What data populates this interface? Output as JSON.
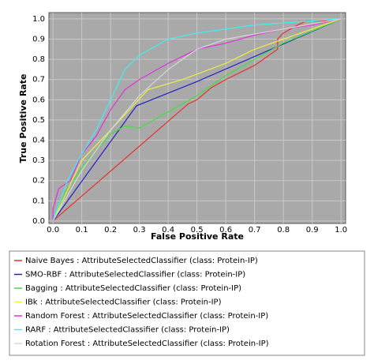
{
  "chart_data": {
    "type": "line",
    "x_label": "False Positive Rate",
    "y_label": "True Positive Rate",
    "xlim": [
      -0.014,
      1.016
    ],
    "ylim": [
      -0.012,
      1.031
    ],
    "xticks": [
      {
        "value": 0,
        "label": "0.0"
      },
      0.1,
      0.2,
      0.3,
      0.4,
      0.5,
      0.6,
      0.7,
      0.8,
      0.9,
      {
        "value": 1,
        "label": "1.0"
      }
    ],
    "yticks": [
      {
        "value": 0,
        "label": "0.0"
      },
      0.1,
      0.2,
      0.3,
      0.4,
      0.5,
      0.6,
      0.7,
      0.8,
      0.9,
      {
        "value": 1,
        "label": "1.0"
      }
    ],
    "grid": true,
    "series": [
      {
        "name": "Naive Bayes : AttributeSelectedClassifier (class: Protein-IP)",
        "color": "#e8302a",
        "x": [
          0,
          0.47,
          0.5,
          0.55,
          0.6,
          0.7,
          0.78,
          0.78,
          0.8,
          0.85,
          0.88,
          0.95,
          1
        ],
        "values": [
          0,
          0.58,
          0.6,
          0.66,
          0.7,
          0.77,
          0.85,
          0.9,
          0.93,
          0.97,
          0.99,
          0.99,
          1
        ]
      },
      {
        "name": "SMO-RBF : AttributeSelectedClassifier (class: Protein-IP)",
        "color": "#2020c0",
        "x": [
          0,
          0.29,
          0.5,
          1
        ],
        "values": [
          0,
          0.57,
          0.69,
          1
        ]
      },
      {
        "name": "Bagging : AttributeSelectedClassifier (class: Protein-IP)",
        "color": "#40e040",
        "x": [
          0,
          0.05,
          0.1,
          0.15,
          0.2,
          0.25,
          0.3,
          0.35,
          0.45,
          0.5,
          0.6,
          0.7,
          0.8,
          0.9,
          1
        ],
        "values": [
          0,
          0.16,
          0.26,
          0.35,
          0.43,
          0.47,
          0.46,
          0.5,
          0.58,
          0.62,
          0.72,
          0.8,
          0.88,
          0.94,
          1
        ]
      },
      {
        "name": "IBk : AttributeSelectedClassifier (class: Protein-IP)",
        "color": "#f0f040",
        "x": [
          0,
          0.1,
          0.2,
          0.33,
          0.45,
          0.6,
          0.7,
          0.8,
          0.9,
          1
        ],
        "values": [
          0,
          0.3,
          0.45,
          0.65,
          0.7,
          0.78,
          0.85,
          0.9,
          0.95,
          1
        ]
      },
      {
        "name": "Random Forest : AttributeSelectedClassifier (class: Protein-IP)",
        "color": "#e030e0",
        "x": [
          0,
          0,
          0.02,
          0.06,
          0.1,
          0.15,
          0.2,
          0.25,
          0.3,
          0.4,
          0.5,
          0.6,
          0.7,
          0.8,
          0.9,
          1
        ],
        "values": [
          0,
          0.06,
          0.16,
          0.2,
          0.33,
          0.42,
          0.55,
          0.65,
          0.7,
          0.78,
          0.85,
          0.88,
          0.92,
          0.95,
          0.97,
          1
        ]
      },
      {
        "name": "RARF : AttributeSelectedClassifier (class: Protein-IP)",
        "color": "#40f0f0",
        "x": [
          0,
          0.05,
          0.1,
          0.15,
          0.2,
          0.25,
          0.3,
          0.4,
          0.5,
          0.6,
          0.7,
          0.8,
          0.9,
          1
        ],
        "values": [
          0,
          0.2,
          0.33,
          0.45,
          0.6,
          0.75,
          0.82,
          0.9,
          0.93,
          0.95,
          0.97,
          0.98,
          0.99,
          1
        ]
      },
      {
        "name": "Rotation Forest : AttributeSelectedClassifier (class: Protein-IP)",
        "color": "#d8d8d8",
        "x": [
          0,
          0.1,
          0.2,
          0.3,
          0.4,
          0.5,
          0.6,
          0.8,
          1
        ],
        "values": [
          0,
          0.25,
          0.45,
          0.62,
          0.75,
          0.85,
          0.9,
          0.95,
          1
        ]
      }
    ]
  }
}
